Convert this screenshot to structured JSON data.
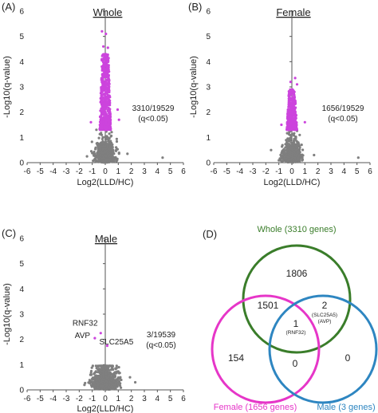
{
  "colors": {
    "significant": "#cc44dd",
    "nonsignificant": "#7f7f7f",
    "axis": "#555555",
    "whole": "#3a7d2a",
    "female": "#e636c8",
    "male": "#2e86c1",
    "text": "#222222"
  },
  "panels": [
    {
      "id": "A",
      "letter": "(A)",
      "title": "Whole",
      "type": "scatter",
      "xlabel": "Log2(LLD/HC)",
      "ylabel": "-Log10(q-value)",
      "xlim": [
        -6,
        6
      ],
      "ylim": [
        0,
        6
      ],
      "xticks": [
        "-6",
        "-5",
        "-4",
        "-3",
        "-2",
        "-1",
        "0",
        "1",
        "2",
        "3",
        "4",
        "5",
        "6"
      ],
      "yticks": [
        "0",
        "1",
        "2",
        "3",
        "4",
        "5",
        "6"
      ],
      "annotation": [
        "3310/19529",
        "(q<0.05)"
      ],
      "cloud": {
        "seed": 11,
        "n_nonsig": 520,
        "n_sig": 560,
        "sig_threshold": 1.3,
        "max_y": 4.3,
        "spread": 0.38
      },
      "extra_points": [
        {
          "x": -0.25,
          "y": 5.2,
          "sig": true
        },
        {
          "x": 0.05,
          "y": 5.1,
          "sig": true
        },
        {
          "x": -0.15,
          "y": 4.6,
          "sig": true
        },
        {
          "x": 0.2,
          "y": 4.55,
          "sig": true
        },
        {
          "x": 1.05,
          "y": 1.7,
          "sig": true
        },
        {
          "x": 0.95,
          "y": 2.1,
          "sig": true
        },
        {
          "x": -1.1,
          "y": 1.6,
          "sig": true
        },
        {
          "x": 4.4,
          "y": 0.2,
          "sig": false
        },
        {
          "x": 1.7,
          "y": 0.35,
          "sig": false
        },
        {
          "x": -1.4,
          "y": 0.25,
          "sig": false
        }
      ]
    },
    {
      "id": "B",
      "letter": "(B)",
      "title": "Female",
      "type": "scatter",
      "xlabel": "Log2(LLD/HC)",
      "ylabel": "-Log10(q-value)",
      "xlim": [
        -6,
        6
      ],
      "ylim": [
        0,
        6
      ],
      "xticks": [
        "-6",
        "-5",
        "-4",
        "-3",
        "-2",
        "-1",
        "0",
        "1",
        "2",
        "3",
        "4",
        "5",
        "6"
      ],
      "yticks": [
        "0",
        "1",
        "2",
        "3",
        "4",
        "5",
        "6"
      ],
      "annotation": [
        "1656/19529",
        "(q<0.05)"
      ],
      "cloud": {
        "seed": 23,
        "n_nonsig": 520,
        "n_sig": 380,
        "sig_threshold": 1.3,
        "max_y": 2.9,
        "spread": 0.34
      },
      "extra_points": [
        {
          "x": 0.25,
          "y": 3.35,
          "sig": true
        },
        {
          "x": -0.1,
          "y": 3.2,
          "sig": true
        },
        {
          "x": 0.4,
          "y": 3.1,
          "sig": true
        },
        {
          "x": 1.0,
          "y": 1.6,
          "sig": true
        },
        {
          "x": -0.8,
          "y": 1.5,
          "sig": true
        },
        {
          "x": 5.1,
          "y": 0.2,
          "sig": false
        },
        {
          "x": -1.6,
          "y": 0.5,
          "sig": false
        },
        {
          "x": 1.7,
          "y": 0.3,
          "sig": false
        }
      ]
    },
    {
      "id": "C",
      "letter": "(C)",
      "title": "Male",
      "type": "scatter",
      "xlabel": "Log2(LLD/HC)",
      "ylabel": "-Log10(q-value)",
      "xlim": [
        -6,
        6
      ],
      "ylim": [
        0,
        6
      ],
      "xticks": [
        "-6",
        "-5",
        "-4",
        "-3",
        "-2",
        "-1",
        "0",
        "1",
        "2",
        "3",
        "4",
        "5",
        "6"
      ],
      "yticks": [
        "0",
        "1",
        "2",
        "3",
        "4",
        "5",
        "6"
      ],
      "annotation": [
        "3/19539",
        "(q<0.05)"
      ],
      "cloud": {
        "seed": 37,
        "n_nonsig": 560,
        "n_sig": 0,
        "sig_threshold": 1.3,
        "max_y": 0.95,
        "spread": 0.5
      },
      "extra_points": [
        {
          "x": -0.35,
          "y": 2.25,
          "sig": true
        },
        {
          "x": -0.8,
          "y": 2.05,
          "sig": true
        },
        {
          "x": 0.15,
          "y": 1.75,
          "sig": true
        },
        {
          "x": 2.3,
          "y": 0.3,
          "sig": false
        },
        {
          "x": 1.9,
          "y": 0.5,
          "sig": false
        },
        {
          "x": -1.6,
          "y": 0.2,
          "sig": false
        }
      ],
      "labels": [
        {
          "text": "RNF32",
          "x": -1.55,
          "y": 2.55
        },
        {
          "text": "AVP",
          "x": -1.75,
          "y": 2.05
        },
        {
          "text": "SLC25A5",
          "x": 0.85,
          "y": 1.8
        }
      ]
    }
  ],
  "venn": {
    "letter": "(D)",
    "sets": [
      {
        "name": "Whole (3310 genes)",
        "color": "#3a7d2a"
      },
      {
        "name": "Female (1656 genes)",
        "color": "#e636c8"
      },
      {
        "name": "Male (3 genes)",
        "color": "#2e86c1"
      }
    ],
    "regions": {
      "whole_only": "1806",
      "whole_female": "1501",
      "whole_male": "2",
      "whole_male_genes": [
        "(SLC25A5)",
        "(AVP)"
      ],
      "all_three": "1",
      "all_three_genes": [
        "(RNF32)"
      ],
      "female_only": "154",
      "female_male": "0",
      "male_only": "0"
    }
  }
}
